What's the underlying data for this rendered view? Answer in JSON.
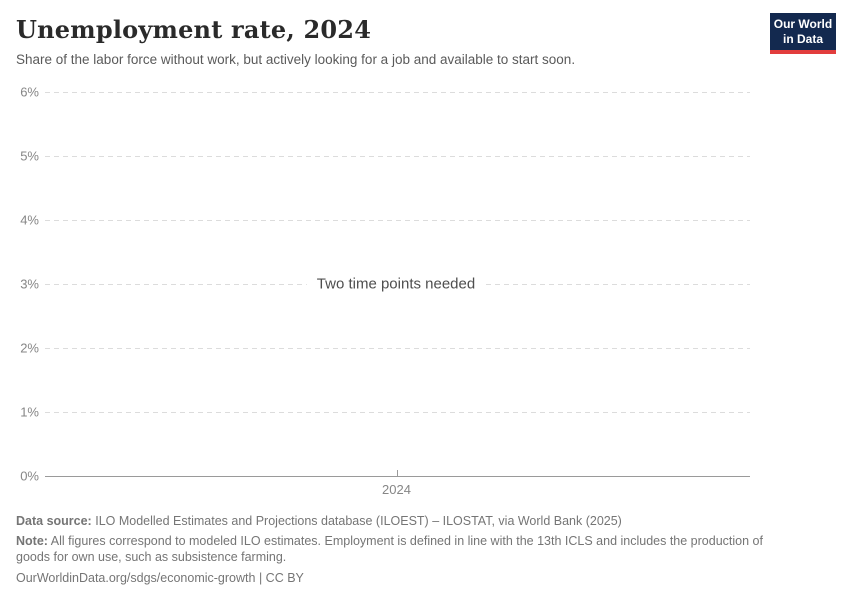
{
  "header": {
    "title": "Unemployment rate, 2024",
    "subtitle": "Share of the labor force without work, but actively looking for a job and available to start soon.",
    "logo": {
      "line1": "Our World",
      "line2": "in Data",
      "bg_color": "#13294f",
      "accent_color": "#e23d3d"
    }
  },
  "chart_data": {
    "type": "line",
    "title": "Unemployment rate, 2024",
    "series": [],
    "x_ticks": [
      "2024"
    ],
    "y_ticks": [
      "0%",
      "1%",
      "2%",
      "3%",
      "4%",
      "5%",
      "6%"
    ],
    "ylim": [
      0,
      6
    ],
    "xlabel": "",
    "ylabel": "",
    "grid": "horizontal-dashed",
    "legend": "none",
    "annotation": "Two time points needed"
  },
  "footer": {
    "data_source_label": "Data source:",
    "data_source_text": "ILO Modelled Estimates and Projections database (ILOEST) – ILOSTAT, via World Bank (2025)",
    "note_label": "Note:",
    "note_text": "All figures correspond to modeled ILO estimates. Employment is defined in line with the 13th ICLS and includes the production of goods for own use, such as subsistence farming.",
    "url": "OurWorldinData.org/sdgs/economic-growth",
    "separator": "|",
    "license": "CC BY"
  }
}
